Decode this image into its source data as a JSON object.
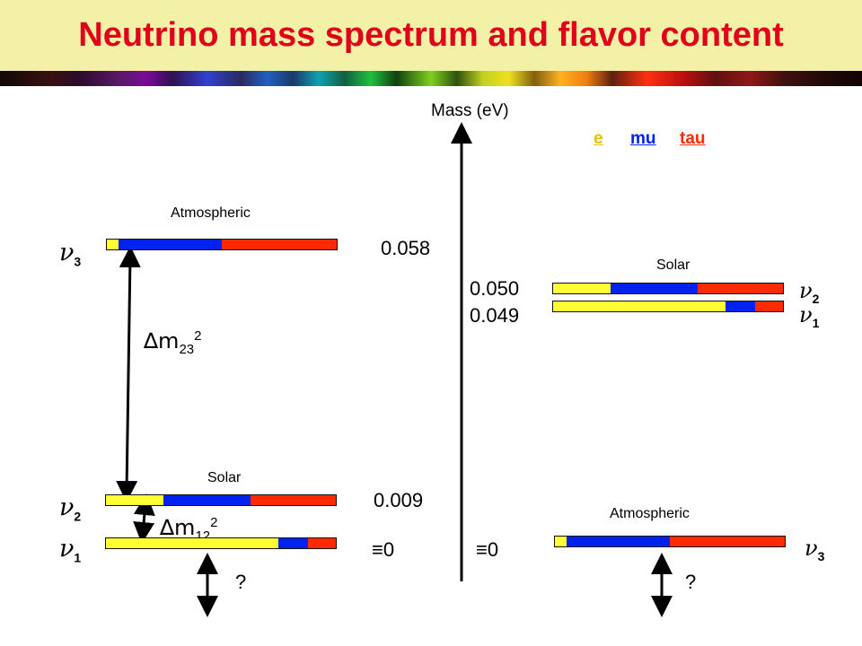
{
  "title": "Neutrino mass spectrum and flavor content",
  "axis_label": "Mass (eV)",
  "colors": {
    "e": "#ffff33",
    "mu": "#0022ee",
    "tau": "#ff2a00",
    "title": "#e0001a"
  },
  "legend": {
    "e": "e",
    "mu": "mu",
    "tau": "tau"
  },
  "left": {
    "atmospheric_label": "Atmospheric",
    "solar_label": "Solar",
    "nu3": {
      "label": "ν",
      "index": "3",
      "fractions": {
        "e": 0.05,
        "mu": 0.45,
        "tau": 0.5
      }
    },
    "nu2": {
      "label": "ν",
      "index": "2",
      "fractions": {
        "e": 0.25,
        "mu": 0.38,
        "tau": 0.37
      }
    },
    "nu1": {
      "label": "ν",
      "index": "1",
      "fractions": {
        "e": 0.75,
        "mu": 0.13,
        "tau": 0.12
      }
    },
    "dm23": {
      "symbol": "∆m",
      "sub": "23",
      "sup": "2"
    },
    "dm12": {
      "symbol": "∆m",
      "sub": "12",
      "sup": "2"
    },
    "question": "?",
    "mass_top": "0.058",
    "mass_mid": "0.009",
    "zero": "≡0"
  },
  "right": {
    "solar_label": "Solar",
    "atmospheric_label": "Atmospheric",
    "nu2": {
      "label": "ν",
      "index": "2",
      "fractions": {
        "e": 0.25,
        "mu": 0.38,
        "tau": 0.37
      }
    },
    "nu1": {
      "label": "ν",
      "index": "1",
      "fractions": {
        "e": 0.75,
        "mu": 0.13,
        "tau": 0.12
      }
    },
    "nu3": {
      "label": "ν",
      "index": "3",
      "fractions": {
        "e": 0.05,
        "mu": 0.45,
        "tau": 0.5
      }
    },
    "mass_top1": "0.050",
    "mass_top2": "0.049",
    "zero": "≡0",
    "question": "?"
  }
}
